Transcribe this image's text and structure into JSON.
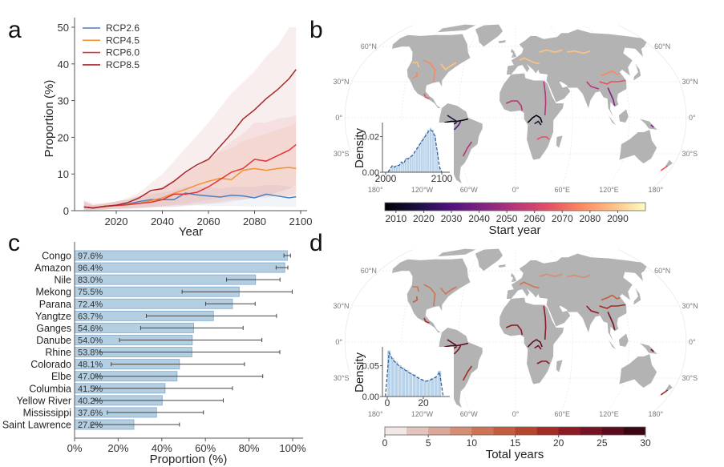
{
  "panel_labels": {
    "a": "a",
    "b": "b",
    "c": "c",
    "d": "d"
  },
  "chart_data": [
    {
      "panel": "a",
      "type": "line",
      "xlabel": "Year",
      "ylabel": "Proportion (%)",
      "xlim": [
        2004,
        2100
      ],
      "ylim": [
        0,
        52
      ],
      "xticks": [
        "2020",
        "2040",
        "2060",
        "2080",
        "2100"
      ],
      "yticks": [
        "0",
        "10",
        "20",
        "30",
        "40",
        "50"
      ],
      "legend": "top-left",
      "grid": false,
      "x": [
        2006,
        2010,
        2015,
        2020,
        2025,
        2030,
        2035,
        2040,
        2045,
        2050,
        2055,
        2060,
        2065,
        2070,
        2075,
        2080,
        2085,
        2090,
        2095,
        2098
      ],
      "series": [
        {
          "name": "RCP2.6",
          "color": "#4a7fbf",
          "values": [
            1.0,
            0.7,
            1.1,
            1.5,
            1.8,
            2.5,
            3.0,
            3.0,
            3.0,
            4.8,
            4.3,
            4.0,
            3.7,
            4.2,
            4.0,
            3.5,
            4.5,
            4.0,
            3.5,
            3.8
          ],
          "upper": [
            2.5,
            1.5,
            2.0,
            2.5,
            3.0,
            4.0,
            4.5,
            5.0,
            5.5,
            6.5,
            6.5,
            6.5,
            6.0,
            6.5,
            6.5,
            6.5,
            7.0,
            7.0,
            6.5,
            6.5
          ],
          "lower": [
            0.2,
            0.2,
            0.3,
            0.5,
            0.6,
            0.8,
            1.0,
            1.0,
            1.0,
            1.5,
            1.5,
            1.2,
            1.2,
            1.3,
            1.2,
            1.0,
            1.2,
            1.0,
            1.0,
            1.0
          ]
        },
        {
          "name": "RCP4.5",
          "color": "#f39130",
          "values": [
            1.0,
            0.7,
            1.1,
            1.4,
            1.7,
            2.0,
            2.7,
            3.5,
            4.7,
            5.8,
            7.0,
            8.0,
            8.8,
            8.5,
            11.0,
            11.5,
            11.0,
            11.5,
            11.8,
            11.5
          ],
          "upper": [
            2.5,
            1.5,
            2.0,
            2.5,
            3.0,
            4.0,
            5.0,
            6.5,
            8.0,
            10.0,
            12.0,
            14.0,
            16.0,
            17.0,
            19.0,
            20.0,
            21.0,
            22.0,
            23.0,
            24.0
          ],
          "lower": [
            0.2,
            0.2,
            0.3,
            0.5,
            0.6,
            0.8,
            1.0,
            1.2,
            1.5,
            2.0,
            2.5,
            3.0,
            3.5,
            3.5,
            4.0,
            4.0,
            4.0,
            4.0,
            4.0,
            4.0
          ]
        },
        {
          "name": "RCP6.0",
          "color": "#e0353a",
          "values": [
            1.0,
            0.8,
            1.2,
            1.4,
            1.6,
            2.0,
            2.3,
            3.0,
            4.5,
            4.5,
            5.0,
            6.5,
            8.5,
            10.5,
            11.5,
            14.0,
            13.5,
            15.0,
            16.5,
            18.0
          ],
          "upper": [
            2.5,
            1.5,
            2.0,
            2.5,
            3.0,
            4.0,
            5.0,
            6.5,
            8.5,
            10.0,
            12.0,
            14.0,
            16.5,
            19.0,
            21.0,
            24.0,
            24.0,
            25.0,
            25.5,
            26.0
          ],
          "lower": [
            0.2,
            0.2,
            0.3,
            0.5,
            0.6,
            0.8,
            1.0,
            1.2,
            1.5,
            1.5,
            2.0,
            2.0,
            2.5,
            3.0,
            3.0,
            3.5,
            3.5,
            4.0,
            4.0,
            4.5
          ]
        },
        {
          "name": "RCP8.5",
          "color": "#a8262b",
          "values": [
            1.0,
            0.7,
            1.2,
            1.5,
            2.2,
            3.5,
            5.5,
            6.0,
            8.0,
            10.5,
            12.5,
            14.0,
            17.5,
            21.0,
            25.0,
            27.5,
            30.5,
            33.0,
            36.0,
            38.5
          ],
          "upper": [
            3.0,
            2.0,
            2.0,
            2.5,
            3.5,
            5.0,
            7.5,
            10.0,
            13.5,
            17.0,
            20.5,
            24.0,
            28.0,
            32.0,
            35.0,
            38.0,
            42.0,
            45.0,
            50.0,
            50.0
          ],
          "lower": [
            0.2,
            0.2,
            0.3,
            0.4,
            0.5,
            0.6,
            0.8,
            1.0,
            1.0,
            1.2,
            1.5,
            1.8,
            2.0,
            2.5,
            3.0,
            3.5,
            4.0,
            5.0,
            6.0,
            7.0
          ]
        }
      ]
    },
    {
      "panel": "b",
      "type": "map",
      "colorbar": {
        "title": "Start year",
        "colormap": "magma",
        "range": [
          2006,
          2100
        ],
        "ticks": [
          "2010",
          "2020",
          "2030",
          "2040",
          "2050",
          "2060",
          "2070",
          "2080",
          "2090"
        ]
      },
      "lat_labels": [
        "60°N",
        "30°N",
        "0°",
        "30°S"
      ],
      "lon_labels": [
        "180°",
        "120°W",
        "60°W",
        "0°",
        "60°E",
        "120°E",
        "180°"
      ],
      "inset": {
        "type": "bar",
        "ylabel": "Density",
        "xticks": [
          "2000",
          "2100"
        ],
        "yticks": [
          "0.00",
          "0.02"
        ],
        "ylim": [
          0,
          0.027
        ],
        "x": [
          2008,
          2012,
          2016,
          2020,
          2024,
          2028,
          2032,
          2036,
          2040,
          2044,
          2048,
          2052,
          2056,
          2060,
          2064,
          2068,
          2072,
          2076,
          2080,
          2084,
          2088,
          2092,
          2096
        ],
        "values": [
          0.002,
          0.004,
          0.003,
          0.004,
          0.004,
          0.006,
          0.005,
          0.008,
          0.008,
          0.009,
          0.01,
          0.012,
          0.014,
          0.016,
          0.018,
          0.02,
          0.022,
          0.024,
          0.025,
          0.024,
          0.021,
          0.012,
          0.003
        ],
        "kde_color": "#2c5a94",
        "bar_color": "#b9d3ea"
      }
    },
    {
      "panel": "c",
      "type": "bar",
      "orientation": "horizontal",
      "xlabel": "Proportion (%)",
      "xlim": [
        0,
        105
      ],
      "xticks": [
        "0%",
        "20%",
        "40%",
        "60%",
        "80%",
        "100%"
      ],
      "categories": [
        "Congo",
        "Amazon",
        "Nile",
        "Mekong",
        "Parana",
        "Yangtze",
        "Ganges",
        "Danube",
        "Rhine",
        "Colorado",
        "Elbe",
        "Columbia",
        "Yellow River",
        "Mississippi",
        "Saint Lawrence"
      ],
      "values": [
        97.6,
        96.4,
        83.0,
        75.5,
        72.4,
        63.7,
        54.6,
        54.0,
        53.8,
        48.1,
        47.0,
        41.5,
        40.2,
        37.6,
        27.2
      ],
      "value_labels": [
        "97.6%",
        "96.4%",
        "83.0%",
        "75.5%",
        "72.4%",
        "63.7%",
        "54.6%",
        "54.0%",
        "53.8%",
        "48.1%",
        "47.0%",
        "41.5%",
        "40.2%",
        "37.6%",
        "27.2%"
      ],
      "error_low": [
        96.0,
        92.4,
        69.7,
        49.3,
        60.1,
        32.9,
        30.3,
        20.6,
        11.7,
        16.8,
        9.8,
        9.2,
        9.2,
        15.0,
        7.4
      ],
      "error_high": [
        99.0,
        97.8,
        94.2,
        99.8,
        82.8,
        92.6,
        77.3,
        85.9,
        94.1,
        77.9,
        86.3,
        72.4,
        68.2,
        59.1,
        48.1
      ],
      "bar_color": "#b5cfe2",
      "bar_edge": "#7fa8cf"
    },
    {
      "panel": "d",
      "type": "map",
      "colorbar": {
        "title": "Total years",
        "colormap": "discrete-reds",
        "range": [
          0,
          30
        ],
        "ticks": [
          "0",
          "5",
          "10",
          "15",
          "20",
          "25",
          "30"
        ],
        "colors": [
          "#f1e8e6",
          "#e4c5bd",
          "#daa898",
          "#d58d74",
          "#cc7455",
          "#c35d3e",
          "#b5452c",
          "#a32d24",
          "#8d1a25",
          "#761224",
          "#5a0b1c",
          "#3a0510"
        ]
      },
      "lat_labels": [
        "60°N",
        "30°N",
        "0°",
        "30°S"
      ],
      "lon_labels": [
        "180°",
        "120°W",
        "60°W",
        "0°",
        "60°E",
        "120°E",
        "180°"
      ],
      "inset": {
        "type": "bar",
        "ylabel": "Density",
        "xticks": [
          "0",
          "20"
        ],
        "yticks": [
          "0.00",
          "0.05"
        ],
        "ylim": [
          0,
          0.078
        ],
        "x": [
          1,
          3,
          5,
          7,
          9,
          11,
          13,
          15,
          17,
          19,
          21,
          23,
          25,
          27,
          29
        ],
        "values": [
          0.075,
          0.063,
          0.057,
          0.051,
          0.047,
          0.043,
          0.039,
          0.036,
          0.032,
          0.029,
          0.026,
          0.027,
          0.03,
          0.033,
          0.042
        ],
        "kde_color": "#2c5a94",
        "bar_color": "#b9d3ea"
      }
    }
  ]
}
